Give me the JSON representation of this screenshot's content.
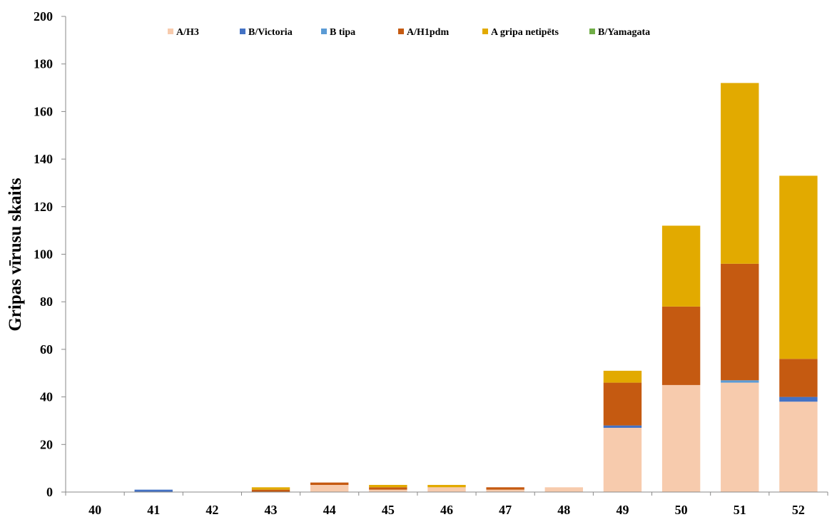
{
  "chart_data": {
    "type": "bar",
    "stacked": true,
    "title": "",
    "xlabel": "",
    "ylabel": "Gripas vīrusu skaits",
    "ylim": [
      0,
      200
    ],
    "yticks": [
      0,
      20,
      40,
      60,
      80,
      100,
      120,
      140,
      160,
      180,
      200
    ],
    "grid": false,
    "legend_position": "top",
    "categories": [
      "40",
      "41",
      "42",
      "43",
      "44",
      "45",
      "46",
      "47",
      "48",
      "49",
      "50",
      "51",
      "52"
    ],
    "series": [
      {
        "name": "A/H3",
        "color": "#f7cbad",
        "values": [
          0,
          0,
          0,
          0,
          3,
          1,
          2,
          1,
          2,
          27,
          45,
          46,
          38
        ]
      },
      {
        "name": "B/Victoria",
        "color": "#4472c4",
        "values": [
          0,
          1,
          0,
          0,
          0,
          0,
          0,
          0,
          0,
          1,
          0,
          0,
          2
        ]
      },
      {
        "name": "B tipa",
        "color": "#5b9bd5",
        "values": [
          0,
          0,
          0,
          0,
          0,
          0,
          0,
          0,
          0,
          0,
          0,
          1,
          0
        ]
      },
      {
        "name": "A/H1pdm",
        "color": "#c55a11",
        "values": [
          0,
          0,
          0,
          1,
          1,
          1,
          0,
          1,
          0,
          18,
          33,
          49,
          16
        ]
      },
      {
        "name": "A gripa netipēts",
        "color": "#e2aa00",
        "values": [
          0,
          0,
          0,
          1,
          0,
          1,
          1,
          0,
          0,
          5,
          34,
          76,
          77
        ]
      },
      {
        "name": "B/Yamagata",
        "color": "#70ad47",
        "values": [
          0,
          0,
          0,
          0,
          0,
          0,
          0,
          0,
          0,
          0,
          0,
          0,
          0
        ]
      }
    ]
  }
}
